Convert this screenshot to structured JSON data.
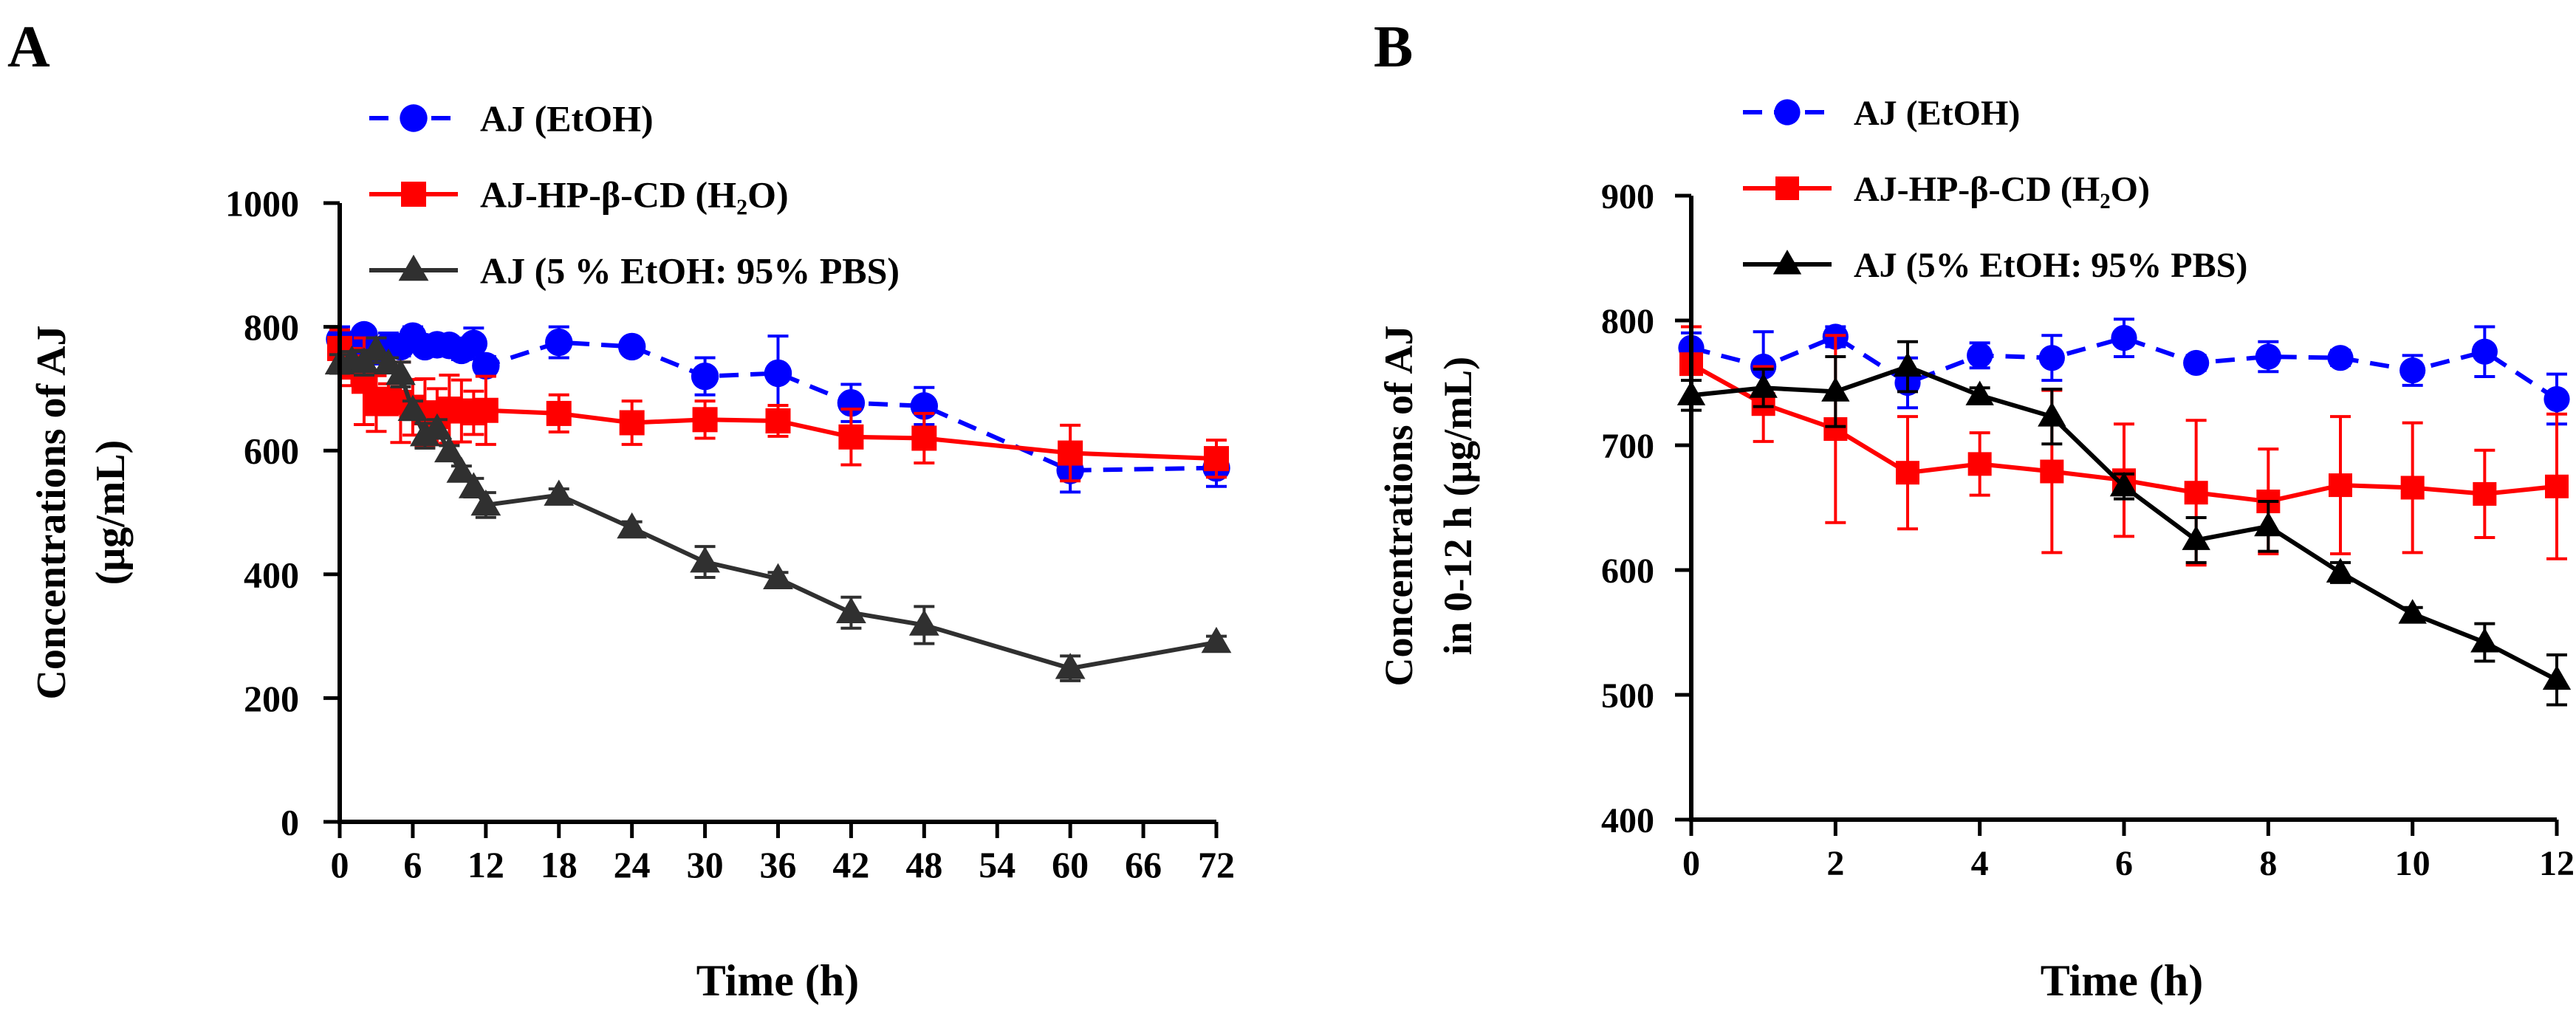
{
  "chart_data": [
    {
      "panel_label": "A",
      "type": "line",
      "title": "",
      "xlabel": "Time (h)",
      "ylabel_lines": [
        "Concentrations of AJ",
        "(μg/mL)"
      ],
      "xlim": [
        0,
        72
      ],
      "ylim": [
        0,
        1000
      ],
      "xticks": [
        "0",
        "6",
        "12",
        "18",
        "24",
        "30",
        "36",
        "42",
        "48",
        "54",
        "60",
        "66",
        "72"
      ],
      "yticks": [
        "0",
        "200",
        "400",
        "600",
        "800",
        "1000"
      ],
      "grid": false,
      "legend_position": "top",
      "series": [
        {
          "name": "AJ (EtOH)",
          "color": "#0000ff",
          "marker": "circle",
          "line_style": "dashed",
          "x": [
            0,
            1,
            2,
            3,
            4,
            5,
            6,
            7,
            8,
            9,
            10,
            11,
            12,
            18,
            24,
            30,
            36,
            42,
            48,
            60,
            72
          ],
          "y": [
            780,
            763,
            787,
            760,
            770,
            768,
            785,
            768,
            771,
            770,
            762,
            773,
            737,
            775,
            768,
            720,
            725,
            677,
            672,
            568,
            572
          ],
          "err": [
            20,
            25,
            10,
            20,
            20,
            15,
            15,
            10,
            10,
            10,
            15,
            25,
            15,
            25,
            10,
            30,
            60,
            30,
            30,
            35,
            30
          ]
        },
        {
          "name": "AJ-HP-β-CD (H₂O)",
          "color": "#ff0000",
          "marker": "square",
          "line_style": "solid",
          "x": [
            0,
            1,
            2,
            3,
            4,
            5,
            6,
            7,
            8,
            9,
            10,
            11,
            12,
            18,
            24,
            30,
            36,
            42,
            48,
            60,
            72
          ],
          "y": [
            765,
            735,
            712,
            676,
            683,
            678,
            670,
            661,
            655,
            667,
            664,
            661,
            665,
            660,
            645,
            650,
            648,
            622,
            620,
            596,
            587
          ],
          "err": [
            30,
            30,
            70,
            45,
            25,
            65,
            45,
            55,
            45,
            55,
            50,
            35,
            55,
            30,
            35,
            30,
            25,
            45,
            40,
            45,
            30
          ]
        },
        {
          "name": "AJ (5 % EtOH: 95% PBS)",
          "color": "#303030",
          "marker": "triangle",
          "line_style": "solid",
          "x": [
            0,
            1,
            2,
            3,
            4,
            5,
            6,
            7,
            8,
            9,
            10,
            11,
            12,
            18,
            24,
            30,
            36,
            42,
            48,
            60,
            72
          ],
          "y": [
            740,
            745,
            742,
            762,
            740,
            723,
            665,
            624,
            635,
            598,
            565,
            540,
            512,
            528,
            475,
            420,
            393,
            338,
            318,
            248,
            290
          ],
          "err": [
            15,
            15,
            20,
            20,
            10,
            20,
            15,
            20,
            15,
            10,
            10,
            15,
            20,
            10,
            10,
            25,
            10,
            25,
            30,
            20,
            10
          ]
        }
      ]
    },
    {
      "panel_label": "B",
      "type": "line",
      "title": "",
      "xlabel": "Time (h)",
      "ylabel_lines": [
        "Concentrations of AJ",
        "in 0-12 h (μg/mL)"
      ],
      "xlim": [
        0,
        12
      ],
      "ylim": [
        400,
        900
      ],
      "xticks": [
        "0",
        "2",
        "4",
        "6",
        "8",
        "10",
        "12"
      ],
      "yticks": [
        "400",
        "500",
        "600",
        "700",
        "800",
        "900"
      ],
      "grid": false,
      "legend_position": "top",
      "series": [
        {
          "name": "AJ (EtOH)",
          "color": "#0000ff",
          "marker": "circle",
          "line_style": "dashed",
          "x": [
            0,
            1,
            2,
            3,
            4,
            5,
            6,
            7,
            8,
            9,
            10,
            11,
            12
          ],
          "y": [
            778,
            763,
            787,
            750,
            772,
            770,
            786,
            766,
            771,
            770,
            760,
            775,
            737
          ],
          "err": [
            12,
            28,
            8,
            20,
            10,
            18,
            15,
            6,
            12,
            6,
            12,
            20,
            20
          ]
        },
        {
          "name": "AJ-HP-β-CD (H₂O)",
          "color": "#ff0000",
          "marker": "square",
          "line_style": "solid",
          "x": [
            0,
            1,
            2,
            3,
            4,
            5,
            6,
            7,
            8,
            9,
            10,
            11,
            12
          ],
          "y": [
            765,
            733,
            713,
            678,
            685,
            679,
            672,
            662,
            655,
            668,
            666,
            661,
            667
          ],
          "err": [
            30,
            30,
            75,
            45,
            25,
            65,
            45,
            58,
            42,
            55,
            52,
            35,
            58
          ]
        },
        {
          "name": "AJ (5% EtOH: 95% PBS)",
          "color": "#000000",
          "marker": "triangle",
          "line_style": "solid",
          "x": [
            0,
            1,
            2,
            3,
            4,
            5,
            6,
            7,
            8,
            9,
            10,
            11,
            12
          ],
          "y": [
            740,
            746,
            743,
            763,
            740,
            723,
            667,
            624,
            635,
            598,
            565,
            542,
            512
          ],
          "err": [
            12,
            15,
            28,
            20,
            6,
            22,
            10,
            18,
            20,
            8,
            5,
            15,
            20
          ]
        }
      ]
    }
  ]
}
